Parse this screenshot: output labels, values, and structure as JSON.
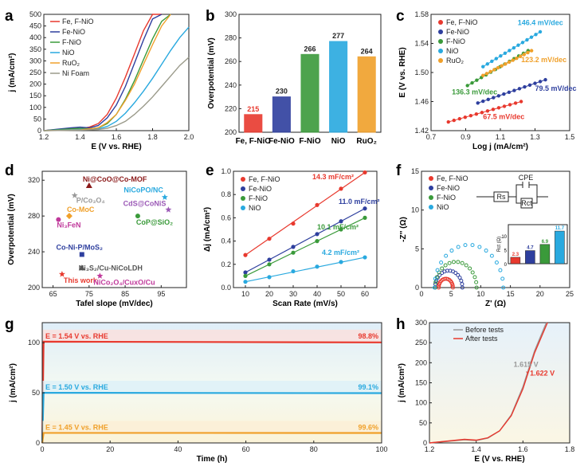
{
  "panel_letters": {
    "a": "a",
    "b": "b",
    "c": "c",
    "d": "d",
    "e": "e",
    "f": "f",
    "g": "g",
    "h": "h"
  },
  "colors": {
    "fe_f_nio": "#e8392e",
    "fe_nio": "#2e3f9e",
    "f_nio": "#3a9a3a",
    "nio": "#29a9df",
    "ruo2": "#f0a02a",
    "ni_foam": "#9a9a8a",
    "maroon": "#a52a2a",
    "gray": "#999999"
  },
  "chart_data": [
    {
      "id": "a",
      "type": "line",
      "xlabel": "E (V vs. RHE)",
      "ylabel": "j (mA/cm²)",
      "xlim": [
        1.2,
        2.0
      ],
      "ylim": [
        0,
        500
      ],
      "xticks": [
        "1.2",
        "1.4",
        "1.6",
        "1.8",
        "2.0"
      ],
      "yticks": [
        "0",
        "50",
        "100",
        "150",
        "200",
        "250",
        "300",
        "350",
        "400",
        "450",
        "500"
      ],
      "legend": "top-left",
      "series": [
        {
          "name": "Fe, F-NiO",
          "color": "#e8392e",
          "x": [
            1.2,
            1.35,
            1.4,
            1.45,
            1.5,
            1.55,
            1.6,
            1.65,
            1.7,
            1.75,
            1.8,
            1.85
          ],
          "y": [
            0,
            10,
            8,
            15,
            30,
            70,
            140,
            230,
            330,
            430,
            500,
            500
          ]
        },
        {
          "name": "Fe-NiO",
          "color": "#2e3f9e",
          "x": [
            1.2,
            1.35,
            1.4,
            1.45,
            1.5,
            1.55,
            1.6,
            1.65,
            1.7,
            1.75,
            1.8,
            1.85
          ],
          "y": [
            0,
            12,
            15,
            12,
            22,
            55,
            110,
            190,
            290,
            390,
            480,
            500
          ]
        },
        {
          "name": "F-NiO",
          "color": "#3a9a3a",
          "x": [
            1.2,
            1.35,
            1.4,
            1.45,
            1.5,
            1.55,
            1.6,
            1.65,
            1.7,
            1.75,
            1.8,
            1.85,
            1.9
          ],
          "y": [
            0,
            8,
            10,
            8,
            12,
            30,
            70,
            135,
            215,
            305,
            395,
            470,
            500
          ]
        },
        {
          "name": "NiO",
          "color": "#29a9df",
          "x": [
            1.2,
            1.4,
            1.5,
            1.55,
            1.6,
            1.65,
            1.7,
            1.75,
            1.8,
            1.85,
            1.9,
            1.95,
            2.0
          ],
          "y": [
            0,
            5,
            8,
            18,
            40,
            75,
            120,
            170,
            225,
            285,
            345,
            400,
            445
          ]
        },
        {
          "name": "RuO₂",
          "color": "#f0a02a",
          "x": [
            1.2,
            1.4,
            1.5,
            1.55,
            1.6,
            1.65,
            1.7,
            1.75,
            1.8,
            1.85,
            1.9
          ],
          "y": [
            0,
            3,
            12,
            35,
            70,
            130,
            200,
            285,
            370,
            450,
            500
          ]
        },
        {
          "name": "Ni Foam",
          "color": "#9a9a8a",
          "x": [
            1.2,
            1.4,
            1.5,
            1.55,
            1.6,
            1.65,
            1.7,
            1.75,
            1.8,
            1.85,
            1.9,
            1.95,
            2.0
          ],
          "y": [
            0,
            2,
            5,
            10,
            22,
            40,
            70,
            105,
            145,
            190,
            235,
            280,
            315
          ]
        }
      ]
    },
    {
      "id": "b",
      "type": "bar",
      "ylabel": "Overpotential (mV)",
      "ylim": [
        200,
        300
      ],
      "yticks": [
        "200",
        "220",
        "240",
        "260",
        "280",
        "300"
      ],
      "categories": [
        "Fe, F-NiO",
        "Fe-NiO",
        "F-NiO",
        "NiO",
        "RuO₂"
      ],
      "values": [
        215,
        230,
        266,
        277,
        264
      ],
      "value_labels": [
        "215",
        "230",
        "266",
        "277",
        "264"
      ],
      "colors": [
        "#e8392e",
        "#2e3f9e",
        "#3a9a3a",
        "#29a9df",
        "#f0a02a"
      ]
    },
    {
      "id": "c",
      "type": "scatter",
      "xlabel": "Log j (mA/cm²)",
      "ylabel": "E (V vs. RHE)",
      "xlim": [
        0.7,
        1.5
      ],
      "ylim": [
        1.42,
        1.58
      ],
      "xticks": [
        "0.7",
        "0.9",
        "1.1",
        "1.3",
        "1.5"
      ],
      "yticks": [
        "1.42",
        "1.46",
        "1.50",
        "1.54",
        "1.58"
      ],
      "legend": "top-left",
      "series": [
        {
          "name": "Fe, F-NiO",
          "color": "#e8392e",
          "x": [
            0.8,
            1.22
          ],
          "y": [
            1.432,
            1.46
          ],
          "slope": "67.5 mV/dec"
        },
        {
          "name": "Fe-NiO",
          "color": "#2e3f9e",
          "x": [
            0.97,
            1.36
          ],
          "y": [
            1.458,
            1.49
          ],
          "slope": "79.5 mV/dec"
        },
        {
          "name": "F-NiO",
          "color": "#3a9a3a",
          "x": [
            0.91,
            1.26
          ],
          "y": [
            1.482,
            1.53
          ],
          "slope": "136.3 mV/dec"
        },
        {
          "name": "NiO",
          "color": "#29a9df",
          "x": [
            1.0,
            1.33
          ],
          "y": [
            1.508,
            1.556
          ],
          "slope": "146.4 mV/dec"
        },
        {
          "name": "RuO₂",
          "color": "#f0a02a",
          "x": [
            1.0,
            1.28
          ],
          "y": [
            1.496,
            1.53
          ],
          "slope": "123.2 mV/dec"
        }
      ]
    },
    {
      "id": "d",
      "type": "scatter",
      "xlabel": "Tafel slope (mV/dec)",
      "ylabel": "Overpotential (mV)",
      "xlim": [
        62,
        102
      ],
      "ylim": [
        200,
        330
      ],
      "xticks": [
        "65",
        "75",
        "85",
        "95"
      ],
      "yticks": [
        "200",
        "240",
        "280",
        "320"
      ],
      "points": [
        {
          "label": "Ni@CoO@Co-MOF",
          "x": 75.0,
          "y": 314,
          "color": "#8b1a1a",
          "marker": "triangle"
        },
        {
          "label": "P/Co₃O₄",
          "x": 71.0,
          "y": 303,
          "color": "#999999",
          "marker": "star"
        },
        {
          "label": "NiCoPO/NC",
          "x": 96.0,
          "y": 301,
          "color": "#29a9df",
          "marker": "star"
        },
        {
          "label": "CdS@CoNiS",
          "x": 97.0,
          "y": 287,
          "color": "#9b59b6",
          "marker": "star"
        },
        {
          "label": "Co-MoC",
          "x": 69.5,
          "y": 280,
          "color": "#f0a02a",
          "marker": "diamond"
        },
        {
          "label": "CoP@SiO₂",
          "x": 88.5,
          "y": 280,
          "color": "#3a9a3a",
          "marker": "circle"
        },
        {
          "label": "Ni₃FeN",
          "x": 66.5,
          "y": 276,
          "color": "#c0399b",
          "marker": "circle"
        },
        {
          "label": "Co-Ni-P/MoS₂",
          "x": 73.0,
          "y": 237,
          "color": "#2e3f9e",
          "marker": "square"
        },
        {
          "label": "Ni₃S₂/Cu-NiCoLDH",
          "x": 73.0,
          "y": 222,
          "color": "#555555",
          "marker": "triangle"
        },
        {
          "label": "This work",
          "x": 67.5,
          "y": 215,
          "color": "#e8392e",
          "marker": "star"
        },
        {
          "label": "NiCo₂O₄/CuxO/Cu",
          "x": 78.0,
          "y": 213,
          "color": "#c0399b",
          "marker": "star"
        }
      ]
    },
    {
      "id": "e",
      "type": "scatter",
      "xlabel": "Scan Rate (mV/s)",
      "ylabel": "Δj (mA/cm²)",
      "xlim": [
        5,
        65
      ],
      "ylim": [
        0,
        1.0
      ],
      "xticks": [
        "10",
        "20",
        "30",
        "40",
        "50",
        "60"
      ],
      "yticks": [
        "0.0",
        "0.2",
        "0.4",
        "0.6",
        "0.8",
        "1.0"
      ],
      "legend": "top-left",
      "x": [
        10,
        20,
        30,
        40,
        50,
        60
      ],
      "series": [
        {
          "name": "Fe, F-NiO",
          "color": "#e8392e",
          "values": [
            0.28,
            0.42,
            0.55,
            0.71,
            0.85,
            0.99
          ],
          "label": "14.3 mF/cm²"
        },
        {
          "name": "Fe-NiO",
          "color": "#2e3f9e",
          "values": [
            0.13,
            0.24,
            0.35,
            0.46,
            0.57,
            0.68
          ],
          "label": "11.0 mF/cm²"
        },
        {
          "name": "F-NiO",
          "color": "#3a9a3a",
          "values": [
            0.1,
            0.2,
            0.3,
            0.4,
            0.5,
            0.6
          ],
          "label": "10.1 mF/cm²"
        },
        {
          "name": "NiO",
          "color": "#29a9df",
          "values": [
            0.05,
            0.09,
            0.14,
            0.18,
            0.22,
            0.26
          ],
          "label": "4.2 mF/cm²"
        }
      ]
    },
    {
      "id": "f",
      "type": "scatter",
      "xlabel": "Z' (Ω)",
      "ylabel": "-Z'' (Ω)",
      "xlim": [
        0,
        25
      ],
      "ylim": [
        0,
        15
      ],
      "xticks": [
        "0",
        "5",
        "10",
        "15",
        "20",
        "25"
      ],
      "yticks": [
        "0",
        "5",
        "10",
        "15"
      ],
      "legend": "top-left",
      "circuit": {
        "cpe": "CPE",
        "rs": "Rs",
        "rct": "Rct"
      },
      "series": [
        {
          "name": "Fe, F-NiO",
          "color": "#e8392e",
          "center": 4.1,
          "radius": 1.2
        },
        {
          "name": "Fe-NiO",
          "color": "#2e3f9e",
          "center": 4.6,
          "radius": 2.3
        },
        {
          "name": "F-NiO",
          "color": "#3a9a3a",
          "center": 5.8,
          "radius": 3.5
        },
        {
          "name": "NiO",
          "color": "#29a9df",
          "center": 8.0,
          "radius": 5.8
        }
      ],
      "inset": {
        "type": "bar",
        "ylabel": "Rct (Ω)",
        "xlim": [
          15,
          25
        ],
        "ylim": [
          0,
          14
        ],
        "xticks": [
          "15",
          "20",
          "25"
        ],
        "yticks": [
          "0",
          "5",
          "10"
        ],
        "x": [
          16.2,
          18.7,
          21.2,
          23.7
        ],
        "values": [
          2.3,
          4.7,
          6.9,
          11.7
        ],
        "value_labels": [
          "2.3",
          "4.7",
          "6.9",
          "11.7"
        ],
        "colors": [
          "#e8392e",
          "#2e3f9e",
          "#3a9a3a",
          "#29a9df"
        ]
      }
    },
    {
      "id": "g",
      "type": "line",
      "xlabel": "Time (h)",
      "ylabel": "j (mA/cm²)",
      "xlim": [
        0,
        100
      ],
      "ylim": [
        0,
        120
      ],
      "xticks": [
        "0",
        "20",
        "40",
        "60",
        "80",
        "100"
      ],
      "yticks": [
        "0",
        "50",
        "100"
      ],
      "series": [
        {
          "name": "E = 1.54 V vs. RHE",
          "color": "#e8392e",
          "level": 101,
          "retention": "98.8%",
          "band": "#fbe0dc"
        },
        {
          "name": "E = 1.50 V vs. RHE",
          "color": "#29a9df",
          "level": 50,
          "retention": "99.1%",
          "band": "#dcf0f8"
        },
        {
          "name": "E = 1.45 V vs. RHE",
          "color": "#f0a02a",
          "level": 10,
          "retention": "99.6%",
          "band": "#fbefd6"
        }
      ]
    },
    {
      "id": "h",
      "type": "line",
      "xlabel": "E (V vs. RHE)",
      "ylabel": "j (mA/cm²)",
      "xlim": [
        1.2,
        1.8
      ],
      "ylim": [
        0,
        300
      ],
      "xticks": [
        "1.2",
        "1.4",
        "1.6",
        "1.8"
      ],
      "yticks": [
        "0",
        "50",
        "100",
        "150",
        "200",
        "250",
        "300"
      ],
      "legend": "top-right",
      "series": [
        {
          "name": "Before tests",
          "color": "#999999",
          "x": [
            1.2,
            1.35,
            1.4,
            1.45,
            1.5,
            1.55,
            1.6,
            1.65,
            1.7
          ],
          "y": [
            0,
            8,
            6,
            12,
            30,
            70,
            140,
            230,
            300
          ]
        },
        {
          "name": "After tests",
          "color": "#e8392e",
          "x": [
            1.2,
            1.35,
            1.4,
            1.45,
            1.5,
            1.55,
            1.6,
            1.65,
            1.705
          ],
          "y": [
            0,
            9,
            7,
            13,
            30,
            68,
            135,
            225,
            300
          ]
        }
      ],
      "annotations": [
        {
          "text": "1.615 V",
          "color": "#999999"
        },
        {
          "text": "1.622 V",
          "color": "#e8392e"
        }
      ]
    }
  ]
}
